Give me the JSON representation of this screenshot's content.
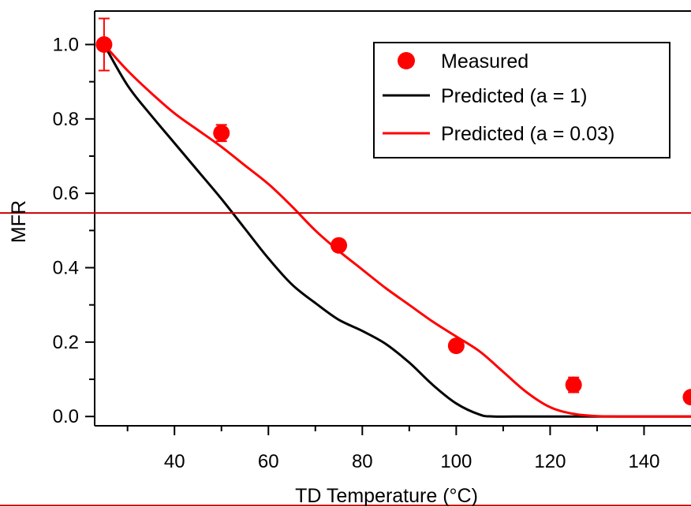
{
  "chart_data": {
    "type": "scatter",
    "xlabel": "TD Temperature (°C)",
    "ylabel": "MFR",
    "xlim": [
      23,
      150
    ],
    "ylim": [
      -0.025,
      1.09
    ],
    "x_ticks": [
      "40",
      "60",
      "80",
      "100",
      "120",
      "140"
    ],
    "y_ticks": [
      "0.0",
      "0.2",
      "0.4",
      "0.6",
      "0.8",
      "1.0"
    ],
    "x_tick_values": [
      40,
      60,
      80,
      100,
      120,
      140
    ],
    "y_tick_values": [
      0.0,
      0.2,
      0.4,
      0.6,
      0.8,
      1.0
    ],
    "x_minor_ticks": [
      30,
      50,
      70,
      90,
      110,
      130
    ],
    "y_minor_ticks": [
      0.1,
      0.3,
      0.5,
      0.7,
      0.9
    ],
    "grid": false,
    "legend_position": "top-right",
    "reference_line_y": 0.547,
    "series": [
      {
        "name": "Measured",
        "kind": "scatter",
        "color": "#ff0000",
        "x": [
          25,
          50,
          75,
          100,
          125,
          150
        ],
        "y": [
          1.0,
          0.762,
          0.46,
          0.19,
          0.085,
          0.052
        ],
        "error": [
          0.07,
          0.022,
          0.015,
          0.015,
          0.02,
          0.015
        ]
      },
      {
        "name": "Predicted (a = 1)",
        "kind": "line",
        "color": "#000000",
        "x": [
          25,
          30,
          35,
          40,
          45,
          50,
          55,
          60,
          65,
          70,
          75,
          80,
          85,
          90,
          95,
          100,
          105,
          108,
          115,
          125,
          135,
          150
        ],
        "y": [
          1.0,
          0.89,
          0.81,
          0.735,
          0.66,
          0.585,
          0.505,
          0.425,
          0.355,
          0.305,
          0.26,
          0.23,
          0.195,
          0.145,
          0.085,
          0.035,
          0.005,
          0.0,
          0.0,
          0.0,
          0.0,
          0.0
        ]
      },
      {
        "name": "Predicted (a = 0.03)",
        "kind": "line",
        "color": "#ff0000",
        "x": [
          25,
          30,
          35,
          40,
          45,
          50,
          55,
          60,
          65,
          70,
          75,
          80,
          85,
          90,
          95,
          100,
          105,
          110,
          115,
          120,
          125,
          130,
          135,
          150
        ],
        "y": [
          1.0,
          0.93,
          0.87,
          0.815,
          0.77,
          0.725,
          0.675,
          0.625,
          0.565,
          0.5,
          0.445,
          0.395,
          0.345,
          0.3,
          0.255,
          0.215,
          0.175,
          0.12,
          0.065,
          0.025,
          0.007,
          0.001,
          0.0,
          0.0
        ]
      }
    ]
  }
}
